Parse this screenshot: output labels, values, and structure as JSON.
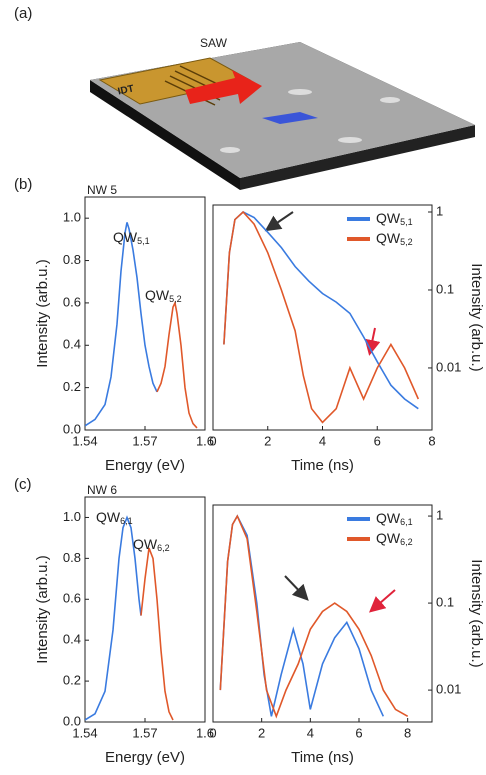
{
  "panel_a": {
    "label": "(a)",
    "idt": "IDT",
    "saw": "SAW"
  },
  "chart_data": [
    {
      "type": "line",
      "panel": "(b)",
      "title": "NW 5",
      "xlabel": "Energy (eV)",
      "ylabel": "Intensity (arb.u.)",
      "xlim": [
        1.54,
        1.6
      ],
      "xticks": [
        1.54,
        1.57,
        1.6
      ],
      "ylim": [
        0,
        1.1
      ],
      "yticks": [
        {
          "value": 0,
          "label": "0.0"
        },
        0.2,
        0.4,
        0.6,
        0.8,
        {
          "value": 1,
          "label": "1.0"
        }
      ],
      "annotations": [
        "QW5,1",
        "QW5,2"
      ],
      "series": [
        {
          "name": "QW5,1",
          "color": "#3a7be0",
          "x": [
            1.54,
            1.545,
            1.55,
            1.553,
            1.556,
            1.558,
            1.56,
            1.561,
            1.562,
            1.564,
            1.566,
            1.568,
            1.57,
            1.572,
            1.574,
            1.576
          ],
          "values": [
            0.02,
            0.05,
            0.12,
            0.25,
            0.5,
            0.75,
            0.93,
            0.98,
            0.95,
            0.85,
            0.72,
            0.55,
            0.4,
            0.3,
            0.22,
            0.18
          ]
        },
        {
          "name": "QW5,2",
          "color": "#e0582a",
          "x": [
            1.576,
            1.578,
            1.58,
            1.582,
            1.584,
            1.585,
            1.586,
            1.588,
            1.59,
            1.592,
            1.594,
            1.596
          ],
          "values": [
            0.18,
            0.22,
            0.3,
            0.45,
            0.58,
            0.6,
            0.55,
            0.4,
            0.2,
            0.08,
            0.03,
            0.01
          ]
        }
      ]
    },
    {
      "type": "line",
      "xlabel": "Time (ns)",
      "ylabel": "Intensity (arb.u.)",
      "yscale": "log",
      "legend": "upper-right",
      "xlim": [
        0,
        8
      ],
      "xticks": [
        0,
        2,
        4,
        6,
        8
      ],
      "ylim": [
        0.0016,
        1.23
      ],
      "yticks": [
        0.01,
        0.1,
        1
      ],
      "series": [
        {
          "name": "QW5,1",
          "color": "#3a7be0",
          "x": [
            0.4,
            0.6,
            0.8,
            1.1,
            1.5,
            2,
            2.5,
            3,
            3.5,
            4,
            4.5,
            5,
            5.5,
            6,
            6.5,
            7,
            7.5
          ],
          "values": [
            0.02,
            0.3,
            0.8,
            1,
            0.85,
            0.55,
            0.35,
            0.2,
            0.13,
            0.09,
            0.07,
            0.05,
            0.025,
            0.012,
            0.006,
            0.004,
            0.003
          ]
        },
        {
          "name": "QW5,2",
          "color": "#e0582a",
          "x": [
            0.4,
            0.6,
            0.8,
            1.1,
            1.5,
            2,
            2.5,
            3,
            3.3,
            3.6,
            4,
            4.5,
            5,
            5.5,
            6,
            6.5,
            7,
            7.5
          ],
          "values": [
            0.02,
            0.3,
            0.8,
            1,
            0.7,
            0.3,
            0.1,
            0.03,
            0.008,
            0.003,
            0.002,
            0.003,
            0.01,
            0.004,
            0.01,
            0.02,
            0.01,
            0.004
          ]
        }
      ]
    },
    {
      "type": "line",
      "panel": "(c)",
      "title": "NW 6",
      "xlabel": "Energy (eV)",
      "ylabel": "Intensity (arb.u.)",
      "xlim": [
        1.54,
        1.6
      ],
      "xticks": [
        1.54,
        1.57,
        1.6
      ],
      "ylim": [
        0,
        1.1
      ],
      "yticks": [
        {
          "value": 0,
          "label": "0.0"
        },
        0.2,
        0.4,
        0.6,
        0.8,
        {
          "value": 1,
          "label": "1.0"
        }
      ],
      "annotations": [
        "QW6,1",
        "QW6,2"
      ],
      "series": [
        {
          "name": "QW6,1",
          "color": "#3a7be0",
          "x": [
            1.54,
            1.545,
            1.55,
            1.554,
            1.557,
            1.559,
            1.561,
            1.563,
            1.565,
            1.567,
            1.568
          ],
          "values": [
            0.01,
            0.04,
            0.15,
            0.45,
            0.8,
            0.95,
            1,
            0.95,
            0.8,
            0.6,
            0.52
          ]
        },
        {
          "name": "QW6,2",
          "color": "#e0582a",
          "x": [
            1.568,
            1.57,
            1.572,
            1.574,
            1.576,
            1.578,
            1.58,
            1.582,
            1.584
          ],
          "values": [
            0.52,
            0.7,
            0.85,
            0.8,
            0.6,
            0.35,
            0.15,
            0.05,
            0.01
          ]
        }
      ]
    },
    {
      "type": "line",
      "xlabel": "Time (ns)",
      "ylabel": "Intensity (arb.u.)",
      "yscale": "log",
      "legend": "upper-right",
      "xlim": [
        0,
        9
      ],
      "xticks": [
        0,
        2,
        4,
        6,
        8
      ],
      "ylim": [
        0.0043,
        1.34
      ],
      "yticks": [
        0.01,
        0.1,
        1
      ],
      "series": [
        {
          "name": "QW6,1",
          "color": "#3a7be0",
          "x": [
            0.3,
            0.6,
            0.8,
            1,
            1.4,
            1.8,
            2.1,
            2.4,
            2.8,
            3.3,
            3.7,
            4,
            4.5,
            5,
            5.5,
            6,
            6.5,
            7
          ],
          "values": [
            0.01,
            0.3,
            0.8,
            1,
            0.6,
            0.1,
            0.015,
            0.005,
            0.015,
            0.05,
            0.02,
            0.006,
            0.02,
            0.04,
            0.06,
            0.03,
            0.01,
            0.005
          ]
        },
        {
          "name": "QW6,2",
          "color": "#e0582a",
          "x": [
            0.3,
            0.6,
            0.8,
            1,
            1.4,
            1.8,
            2.2,
            2.6,
            3,
            3.5,
            4,
            4.5,
            5,
            5.5,
            6,
            6.5,
            7,
            7.5,
            8
          ],
          "values": [
            0.01,
            0.3,
            0.8,
            1,
            0.55,
            0.08,
            0.01,
            0.005,
            0.01,
            0.02,
            0.05,
            0.08,
            0.1,
            0.08,
            0.05,
            0.025,
            0.01,
            0.006,
            0.005
          ]
        }
      ]
    }
  ]
}
